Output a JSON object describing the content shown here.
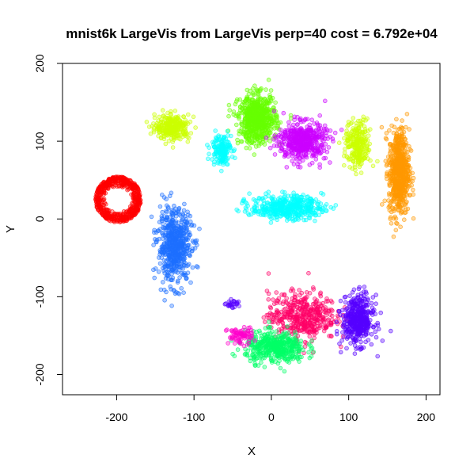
{
  "chart_data": {
    "type": "scatter",
    "title": "mnist6k LargeVis from LargeVis perp=40 cost = 6.792e+04",
    "xlabel": "X",
    "ylabel": "Y",
    "xlim": [
      -270,
      218
    ],
    "ylim": [
      -226,
      200
    ],
    "xticks": [
      -200,
      -100,
      0,
      100,
      200
    ],
    "yticks": [
      -200,
      -100,
      0,
      100,
      200
    ],
    "xtick_labels": [
      "-200",
      "-100",
      "0",
      "100",
      "200"
    ],
    "ytick_labels": [
      "-200",
      "-100",
      "0",
      "100",
      "200"
    ],
    "grid": false,
    "legend": "none",
    "marker": "open circle, semi-transparent",
    "clusters": [
      {
        "color": "#FF0000",
        "center": [
          -198,
          25
        ],
        "spread": [
          28,
          28
        ],
        "shape": "ring",
        "points": 550
      },
      {
        "color": "#1E6FFF",
        "center": [
          -125,
          -35
        ],
        "spread": [
          20,
          42
        ],
        "shape": "blob",
        "points": 600
      },
      {
        "color": "#CCFF00",
        "center": [
          -128,
          118
        ],
        "spread": [
          20,
          14
        ],
        "shape": "blob",
        "points": 300
      },
      {
        "color": "#66FF00",
        "center": [
          -18,
          128
        ],
        "spread": [
          22,
          28
        ],
        "shape": "blob",
        "points": 650
      },
      {
        "color": "#00FFFF",
        "center": [
          -65,
          90
        ],
        "spread": [
          12,
          18
        ],
        "shape": "blob",
        "points": 160
      },
      {
        "color": "#CC00FF",
        "center": [
          40,
          100
        ],
        "spread": [
          28,
          22
        ],
        "shape": "blob",
        "points": 500
      },
      {
        "color": "#00FFFF",
        "center": [
          20,
          15
        ],
        "spread": [
          42,
          14
        ],
        "shape": "blob",
        "points": 450
      },
      {
        "color": "#CCFF00",
        "center": [
          112,
          95
        ],
        "spread": [
          15,
          28
        ],
        "shape": "blob",
        "points": 250
      },
      {
        "color": "#FF9900",
        "center": [
          165,
          60
        ],
        "spread": [
          12,
          50
        ],
        "shape": "blob",
        "points": 650
      },
      {
        "color": "#FF0066",
        "center": [
          40,
          -125
        ],
        "spread": [
          40,
          28
        ],
        "shape": "blob",
        "points": 450
      },
      {
        "color": "#00FF66",
        "center": [
          5,
          -165
        ],
        "spread": [
          35,
          18
        ],
        "shape": "blob",
        "points": 450
      },
      {
        "color": "#5500FF",
        "center": [
          112,
          -130
        ],
        "spread": [
          18,
          28
        ],
        "shape": "blob",
        "points": 450
      },
      {
        "color": "#FF00CC",
        "center": [
          -40,
          -150
        ],
        "spread": [
          15,
          10
        ],
        "shape": "blob",
        "points": 80
      },
      {
        "color": "#5500FF",
        "center": [
          -50,
          -110
        ],
        "spread": [
          8,
          5
        ],
        "shape": "blob",
        "points": 25
      }
    ]
  }
}
